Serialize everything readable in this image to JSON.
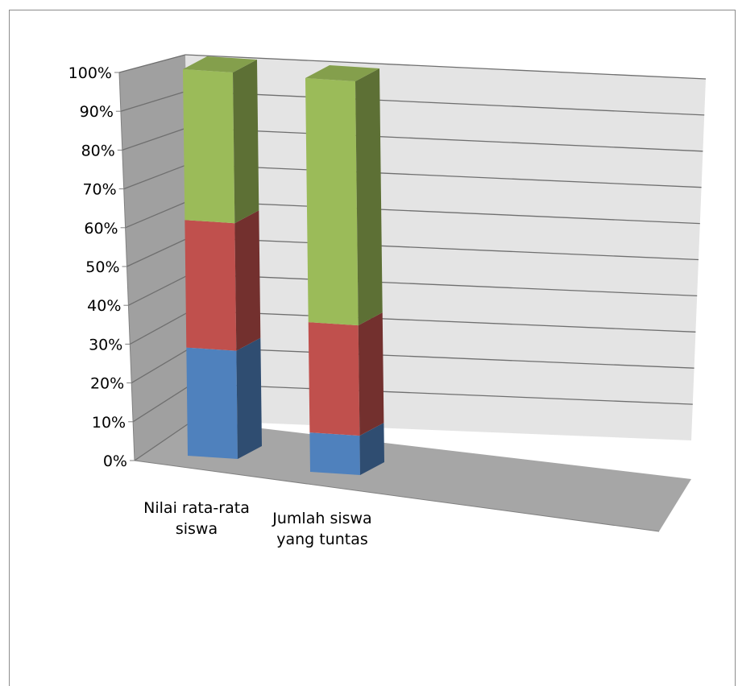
{
  "chart_data": {
    "type": "bar",
    "stacked": "percent",
    "three_d": true,
    "title": "",
    "xlabel": "",
    "ylabel": "",
    "ylim": [
      0,
      100
    ],
    "yticks": [
      "0%",
      "10%",
      "20%",
      "30%",
      "40%",
      "50%",
      "60%",
      "70%",
      "80%",
      "90%",
      "100%"
    ],
    "categories": [
      {
        "line1": "Nilai rata-rata",
        "line2": "siswa"
      },
      {
        "line1": "Jumlah siswa",
        "line2": "yang tuntas"
      }
    ],
    "series": [
      {
        "values": [
          28,
          10
        ],
        "color": "#4f81bd"
      },
      {
        "values": [
          33,
          28
        ],
        "color": "#c0504d"
      },
      {
        "values": [
          39,
          62
        ],
        "color": "#9bbb59"
      }
    ],
    "grid": true,
    "legend": "none"
  }
}
